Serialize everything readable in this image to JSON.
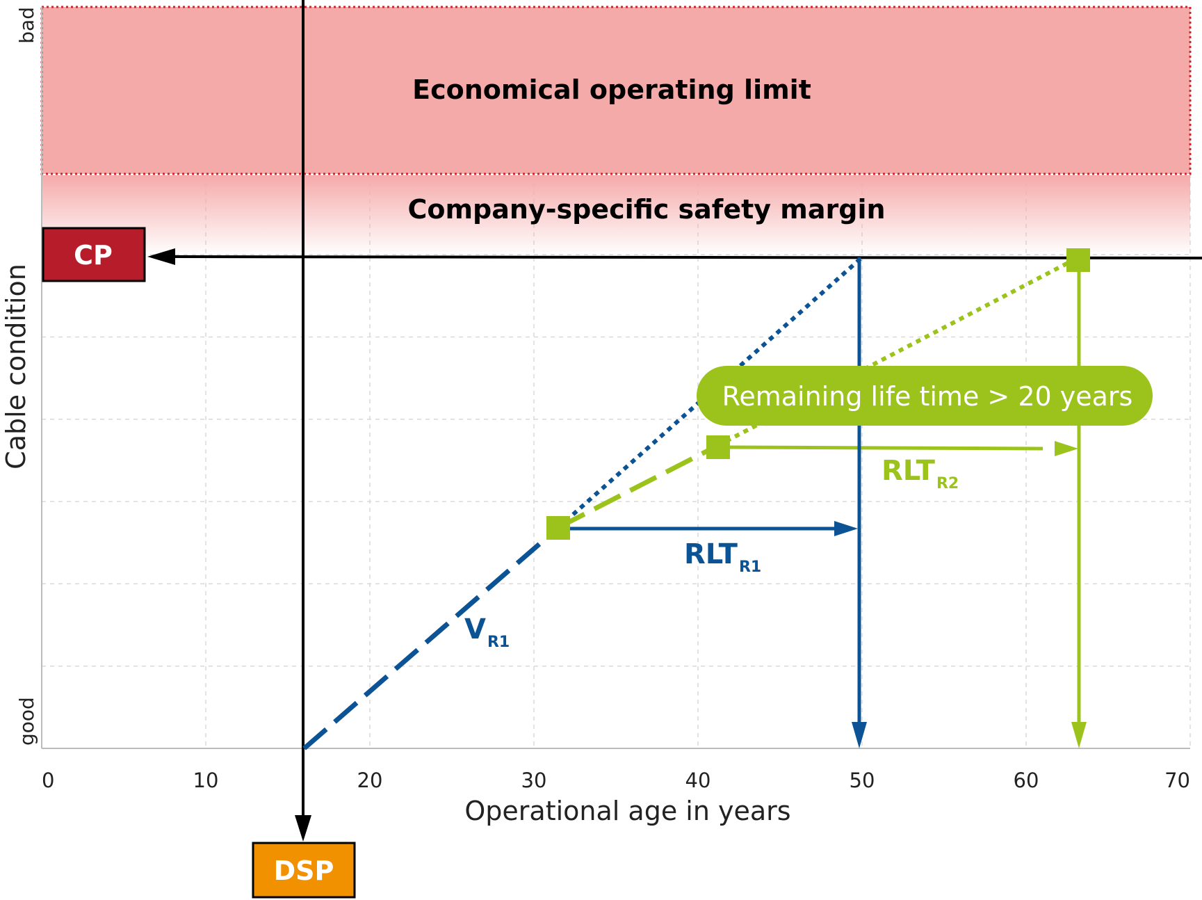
{
  "colors": {
    "blue": "#0b5394",
    "green": "#9bc31c",
    "cp_red": "#b71c2b",
    "dsp_orange": "#f29100",
    "limit_zone": "#f5aaaa",
    "limit_border": "#d2232a"
  },
  "zones": {
    "limit_label": "Economical operating limit",
    "margin_label": "Company-specific safety margin"
  },
  "boxes": {
    "cp": "CP",
    "dsp": "DSP"
  },
  "axes": {
    "xlabel": "Operational age in years",
    "ylabel": "Cable condition",
    "y_top_label": "bad",
    "y_bottom_label": "good",
    "x_ticks": [
      "0",
      "10",
      "20",
      "30",
      "40",
      "50",
      "60",
      "70"
    ]
  },
  "labels": {
    "v_main": "V",
    "v_sub": "R1",
    "rlt1_main": "RLT",
    "rlt1_sub": "R1",
    "rlt2_main": "RLT",
    "rlt2_sub": "R2",
    "pill": "Remaining life time > 20 years"
  },
  "chart_data": {
    "type": "line",
    "xlabel": "Operational age in years",
    "ylabel": "Cable condition",
    "xlim": [
      0,
      70
    ],
    "x_ticks": [
      0,
      10,
      20,
      30,
      40,
      50,
      60,
      70
    ],
    "dsp_age": 16,
    "series": [
      {
        "style": "dashed",
        "color": "#0b5394",
        "points": [
          [
            16,
            0
          ],
          [
            31.5,
            2.7
          ]
        ]
      },
      {
        "style": "dotted",
        "color": "#0b5394",
        "points": [
          [
            31.5,
            2.7
          ],
          [
            50,
            6
          ]
        ]
      },
      {
        "style": "dashed",
        "color": "#9bc31c",
        "points": [
          [
            31.5,
            2.7
          ],
          [
            41.2,
            3.7
          ]
        ]
      },
      {
        "style": "dotted",
        "color": "#9bc31c",
        "points": [
          [
            41.2,
            3.7
          ],
          [
            63.2,
            6
          ]
        ]
      }
    ],
    "cp_condition": 6,
    "rlt_r1": {
      "from_age": 31.5,
      "to_age": 50
    },
    "rlt_r2": {
      "from_age": 41.2,
      "to_age": 63.2
    },
    "end_of_life_ages": [
      50,
      63.2
    ]
  }
}
